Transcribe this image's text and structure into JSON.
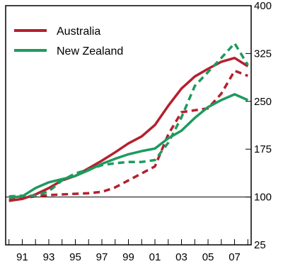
{
  "chart_data": {
    "type": "line",
    "title": "",
    "xlabel": "",
    "ylabel": "",
    "x_tick_labels": [
      "91",
      "93",
      "95",
      "97",
      "99",
      "01",
      "03",
      "05",
      "07"
    ],
    "y_ticks": [
      25,
      100,
      175,
      250,
      325,
      400
    ],
    "ylim": [
      25,
      400
    ],
    "xlim": [
      1989.75,
      2008.25
    ],
    "grid": false,
    "legend": "top-left",
    "series": [
      {
        "name": "Australia",
        "style": "solid",
        "color": "#b5202e",
        "x": [
          1990,
          1991,
          1992,
          1993,
          1994,
          1995,
          1996,
          1997,
          1998,
          1999,
          2000,
          2001,
          2002,
          2003,
          2004,
          2005,
          2006,
          2007,
          2008
        ],
        "y": [
          94,
          97,
          104,
          114,
          126,
          133,
          145,
          157,
          170,
          184,
          195,
          213,
          243,
          270,
          289,
          301,
          312,
          318,
          305
        ]
      },
      {
        "name": "Australia",
        "style": "dashed",
        "color": "#b5202e",
        "x": [
          1990,
          1991,
          1992,
          1993,
          1994,
          1995,
          1996,
          1997,
          1998,
          1999,
          2000,
          2001,
          2002,
          2003,
          2004,
          2005,
          2006,
          2007,
          2008
        ],
        "y": [
          95,
          98,
          101,
          103,
          104,
          105,
          106,
          108,
          115,
          126,
          137,
          148,
          198,
          233,
          236,
          239,
          262,
          298,
          290
        ]
      },
      {
        "name": "New Zealand",
        "style": "solid",
        "color": "#1e9a5e",
        "x": [
          1990,
          1991,
          1992,
          1993,
          1994,
          1995,
          1996,
          1997,
          1998,
          1999,
          2000,
          2001,
          2002,
          2003,
          2004,
          2005,
          2006,
          2007,
          2008
        ],
        "y": [
          99,
          101,
          114,
          123,
          128,
          133,
          142,
          152,
          160,
          167,
          172,
          176,
          192,
          204,
          224,
          241,
          252,
          261,
          252
        ]
      },
      {
        "name": "New Zealand",
        "style": "dashed",
        "color": "#1e9a5e",
        "x": [
          1990,
          1991,
          1992,
          1993,
          1994,
          1995,
          1996,
          1997,
          1998,
          1999,
          2000,
          2001,
          2002,
          2003,
          2004,
          2005,
          2006,
          2007,
          2008
        ],
        "y": [
          101,
          102,
          102,
          109,
          126,
          137,
          143,
          150,
          153,
          155,
          155,
          158,
          185,
          225,
          274,
          296,
          318,
          341,
          307
        ]
      }
    ]
  },
  "legend": {
    "items": [
      {
        "label": "Australia",
        "color": "#b5202e"
      },
      {
        "label": "New Zealand",
        "color": "#1e9a5e"
      }
    ]
  }
}
